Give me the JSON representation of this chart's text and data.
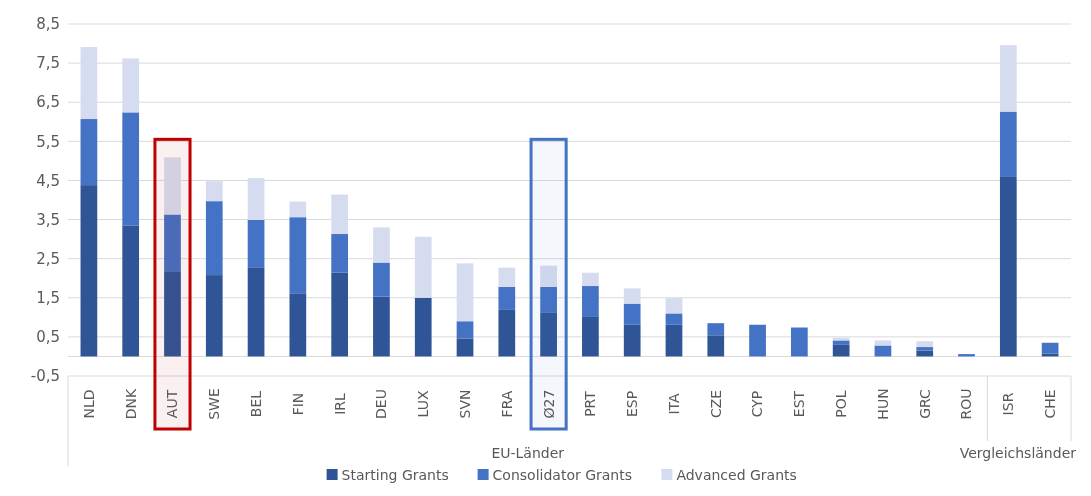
{
  "chart_data": {
    "type": "bar",
    "stacked": true,
    "categories": [
      "NLD",
      "DNK",
      "AUT",
      "SWE",
      "BEL",
      "FIN",
      "IRL",
      "DEU",
      "LUX",
      "SVN",
      "FRA",
      "Ø27",
      "PRT",
      "ESP",
      "ITA",
      "CZE",
      "CYP",
      "EST",
      "POL",
      "HUN",
      "GRC",
      "ROU",
      "ISR",
      "CHE"
    ],
    "series": [
      {
        "name": "Starting Grants",
        "color": "#2f5597",
        "values": [
          4.38,
          3.35,
          2.18,
          2.08,
          2.28,
          1.6,
          2.14,
          1.53,
          1.5,
          0.46,
          1.19,
          1.13,
          1.01,
          0.81,
          0.81,
          0.54,
          0,
          0,
          0.31,
          0,
          0.15,
          0,
          4.59,
          0.07
        ]
      },
      {
        "name": "Consolidator Grants",
        "color": "#4472c4",
        "values": [
          1.69,
          2.89,
          1.45,
          1.89,
          1.21,
          1.96,
          0.99,
          0.87,
          0,
          0.44,
          0.59,
          0.65,
          0.79,
          0.54,
          0.29,
          0.31,
          0.81,
          0.74,
          0.1,
          0.28,
          0.09,
          0.06,
          1.67,
          0.28
        ]
      },
      {
        "name": "Advanced Grants",
        "color": "#d6dcf0",
        "values": [
          1.84,
          1.38,
          1.46,
          0.51,
          1.07,
          0.4,
          1.01,
          0.9,
          1.56,
          1.48,
          0.49,
          0.54,
          0.34,
          0.39,
          0.39,
          0,
          0,
          0,
          0.07,
          0.13,
          0.15,
          0,
          1.7,
          0
        ]
      }
    ],
    "ylim": [
      -0.5,
      8.5
    ],
    "yticks": [
      {
        "value": -0.5,
        "label": "-0,5"
      },
      {
        "value": 0.5,
        "label": "0,5"
      },
      {
        "value": 1.5,
        "label": "1,5"
      },
      {
        "value": 2.5,
        "label": "2,5"
      },
      {
        "value": 3.5,
        "label": "3,5"
      },
      {
        "value": 4.5,
        "label": "4,5"
      },
      {
        "value": 5.5,
        "label": "5,5"
      },
      {
        "value": 6.5,
        "label": "6,5"
      },
      {
        "value": 7.5,
        "label": "7,5"
      },
      {
        "value": 8.5,
        "label": "8,5"
      }
    ],
    "grid": "y",
    "legend": "bottom",
    "bands": [
      {
        "axis": "x",
        "from": "AUT",
        "to": "AUT",
        "color": "#c00000"
      },
      {
        "axis": "x",
        "from": "Ø27",
        "to": "Ø27",
        "color": "#4472c4"
      }
    ],
    "annotations": [
      "EU-Länder",
      "Vergleichsländer"
    ]
  }
}
